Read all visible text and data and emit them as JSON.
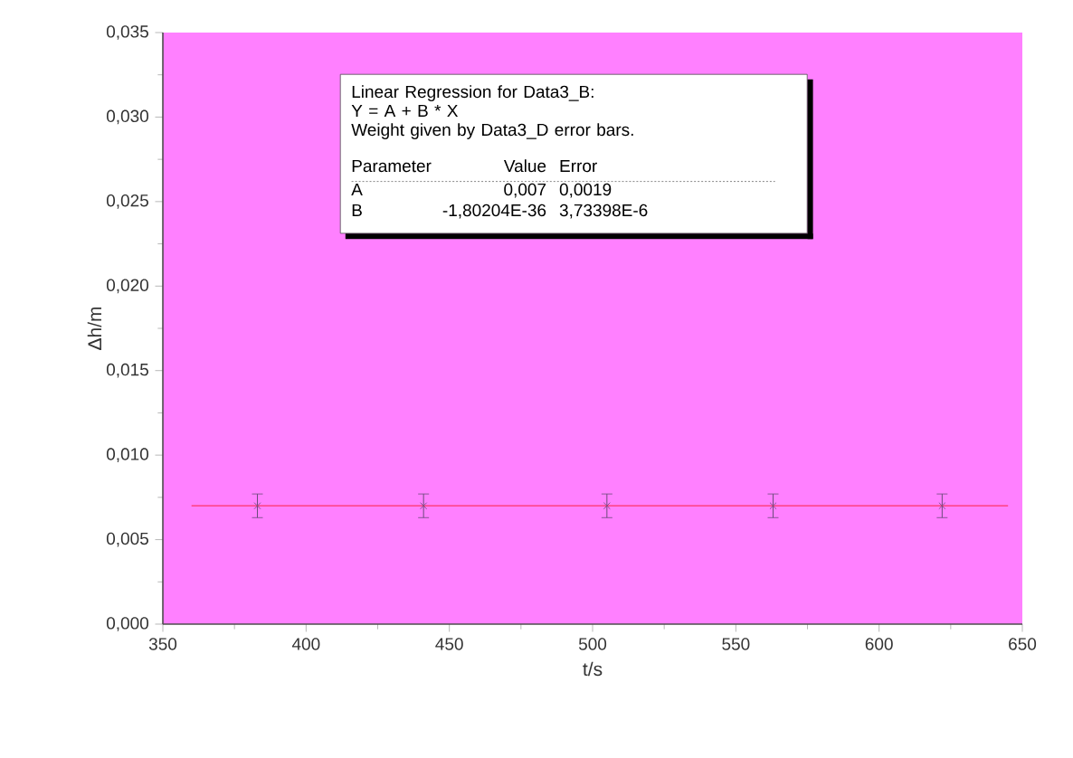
{
  "chart_data": {
    "type": "scatter",
    "xlabel": "t/s",
    "ylabel": "Δh/m",
    "x": [
      383,
      441,
      505,
      563,
      622
    ],
    "series": [
      {
        "type": "scatter",
        "color": "#6a4a7a",
        "values": [
          0.007,
          0.007,
          0.007,
          0.007,
          0.007
        ],
        "errors": [
          0.0007,
          0.0007,
          0.0007,
          0.0007,
          0.0007
        ],
        "marker": "cross"
      },
      {
        "type": "line",
        "color": "#ff3366",
        "x": [
          360,
          645
        ],
        "values": [
          0.007,
          0.007
        ],
        "marker": "none",
        "line_style": "solid"
      }
    ],
    "xlim": [
      350,
      650
    ],
    "xticks": [
      350,
      400,
      450,
      500,
      550,
      600,
      650
    ],
    "ylim": [
      0,
      0.035
    ],
    "yticks": [
      {
        "value": 0,
        "label": "0,000"
      },
      {
        "value": 0.005,
        "label": "0,005"
      },
      {
        "value": 0.01,
        "label": "0,010"
      },
      {
        "value": 0.015,
        "label": "0,015"
      },
      {
        "value": 0.02,
        "label": "0,020"
      },
      {
        "value": 0.025,
        "label": "0,025"
      },
      {
        "value": 0.03,
        "label": "0,030"
      },
      {
        "value": 0.035,
        "label": "0,035"
      }
    ],
    "annotations": [
      "Linear Regression for Data3_B:",
      "Y = A + B * X",
      "Weight given by Data3_D error bars.",
      "Parameter",
      "Value",
      "Error",
      "A",
      "0,007",
      "0,0019",
      "B",
      "-1,80204E-36",
      "3,73398E-6"
    ],
    "grid": false
  }
}
